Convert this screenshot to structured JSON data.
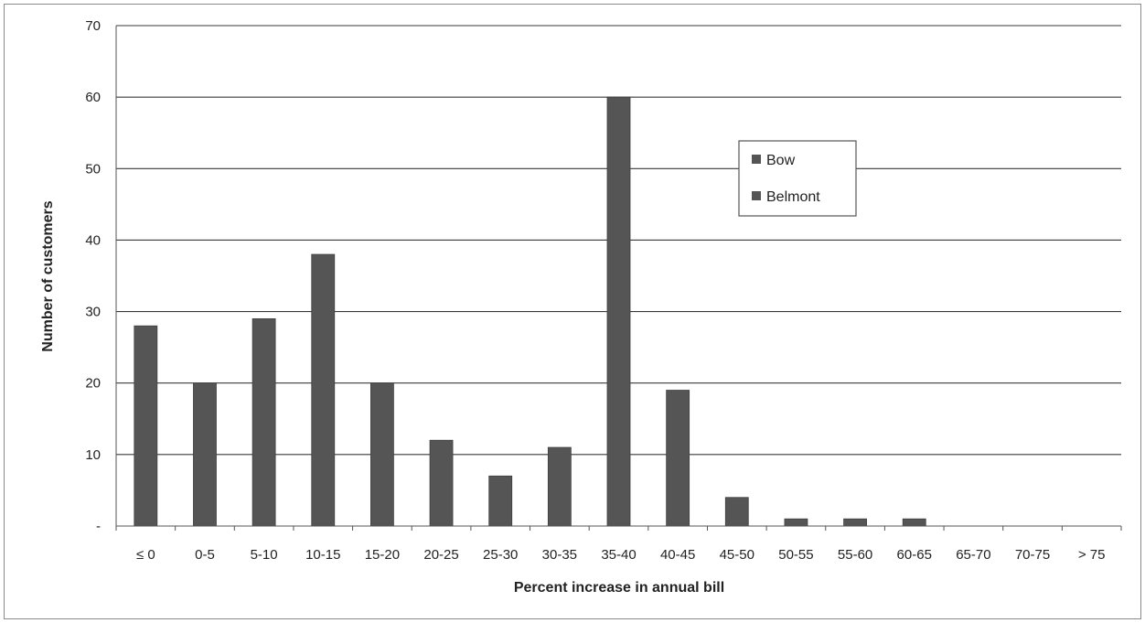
{
  "chart_data": {
    "type": "bar",
    "categories": [
      "≤ 0",
      "0-5",
      "5-10",
      "10-15",
      "15-20",
      "20-25",
      "25-30",
      "30-35",
      "35-40",
      "40-45",
      "45-50",
      "50-55",
      "55-60",
      "60-65",
      "65-70",
      "70-75",
      "> 75"
    ],
    "series": [
      {
        "name": "Bow",
        "values": [
          28,
          20,
          29,
          38,
          20,
          12,
          7,
          11,
          60,
          19,
          4,
          1,
          1,
          1,
          0,
          0,
          0
        ]
      },
      {
        "name": "Belmont",
        "values": [
          0,
          0,
          0,
          0,
          0,
          0,
          0,
          0,
          0,
          0,
          0,
          0,
          0,
          0,
          0,
          0,
          0
        ]
      }
    ],
    "xlabel": "Percent increase in annual bill",
    "ylabel": "Number of customers",
    "ylim": [
      0,
      70
    ],
    "yticks": [
      "-",
      "10",
      "20",
      "30",
      "40",
      "50",
      "60",
      "70"
    ],
    "grid": true,
    "legend_position": "upper-right",
    "colors": {
      "bar": "#555555",
      "grid": "#3a3a3a",
      "axis": "#555555"
    }
  }
}
